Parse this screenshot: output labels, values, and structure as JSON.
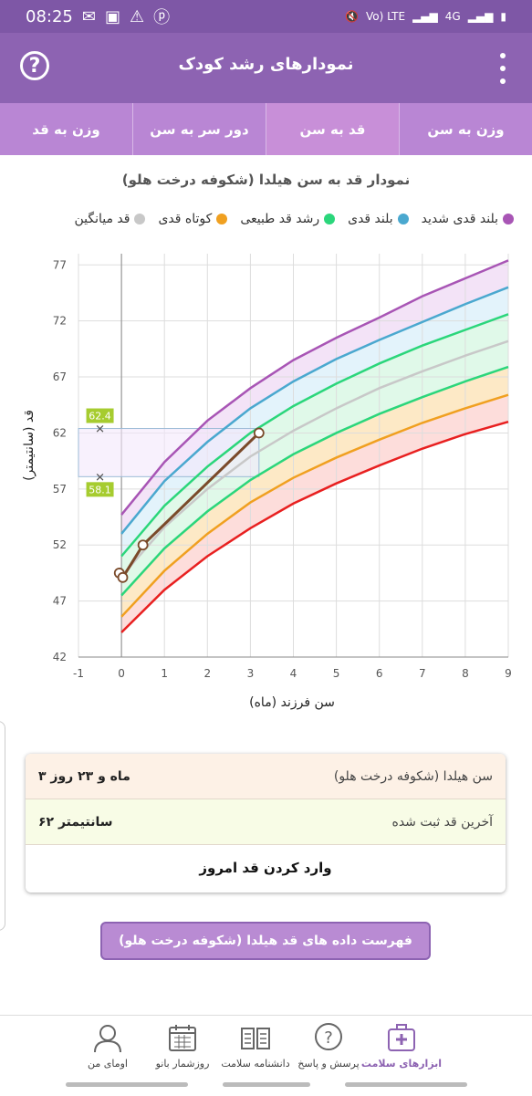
{
  "status_bar": {
    "time": "08:25",
    "network_label": "Vo) LTE",
    "network_type": "4G"
  },
  "app_bar": {
    "title": "نمودارهای رشد کودک",
    "help_label": "?"
  },
  "tabs": [
    {
      "label": "وزن به سن",
      "active": false
    },
    {
      "label": "قد به سن",
      "active": true
    },
    {
      "label": "دور سر به سن",
      "active": false
    },
    {
      "label": "وزن به قد",
      "active": false
    }
  ],
  "chart": {
    "title": "نمودار قد به سن هیلدا (شکوفه درخت هلو)",
    "xlabel": "سن فرزند (ماه)",
    "ylabel": "قد (سانتیمتر)",
    "legend": [
      {
        "label": "بلند قدی شدید",
        "color": "#a855b5"
      },
      {
        "label": "بلند قدی",
        "color": "#4aa8cf"
      },
      {
        "label": "رشد قد طبیعی",
        "color": "#2bd67b"
      },
      {
        "label": "کوتاه قدی",
        "color": "#f0a020"
      },
      {
        "label": "قد میانگین",
        "color": "#c8c8c8"
      }
    ],
    "marker_high": "62.4",
    "marker_low": "58.1"
  },
  "chart_data": {
    "type": "line",
    "xlim": [
      -1,
      9
    ],
    "ylim": [
      42,
      78
    ],
    "x_ticks": [
      "-1",
      "0",
      "1",
      "2",
      "3",
      "4",
      "5",
      "6",
      "7",
      "8",
      "9"
    ],
    "y_ticks": [
      "42",
      "47",
      "52",
      "57",
      "62",
      "67",
      "72",
      "77"
    ],
    "reference_x": [
      0,
      1,
      2,
      3,
      4,
      5,
      6,
      7,
      8,
      9
    ],
    "reference_curves": [
      {
        "color": "#e82020",
        "values": [
          44.2,
          48.0,
          51.0,
          53.5,
          55.7,
          57.5,
          59.1,
          60.6,
          61.9,
          63.0
        ]
      },
      {
        "color": "#f0a020",
        "values": [
          45.6,
          49.7,
          53.0,
          55.8,
          58.0,
          59.8,
          61.4,
          62.9,
          64.2,
          65.4
        ]
      },
      {
        "color": "#2bd67b",
        "values": [
          47.5,
          51.7,
          55.0,
          57.8,
          60.1,
          62.0,
          63.7,
          65.2,
          66.6,
          67.9
        ]
      },
      {
        "color": "#c8c8c8",
        "values": [
          49.2,
          53.6,
          57.0,
          59.9,
          62.2,
          64.2,
          66.0,
          67.5,
          68.9,
          70.2
        ]
      },
      {
        "color": "#2bd67b",
        "values": [
          51.0,
          55.5,
          59.0,
          62.0,
          64.4,
          66.4,
          68.2,
          69.8,
          71.2,
          72.6
        ]
      },
      {
        "color": "#4aa8cf",
        "values": [
          53.0,
          57.7,
          61.2,
          64.2,
          66.6,
          68.6,
          70.3,
          71.9,
          73.5,
          75.0
        ]
      },
      {
        "color": "#a855b5",
        "values": [
          54.7,
          59.4,
          63.1,
          66.0,
          68.5,
          70.5,
          72.3,
          74.2,
          75.8,
          77.4
        ]
      }
    ],
    "child_series": {
      "name": "هیلدا",
      "x": [
        -0.05,
        0.03,
        0.5,
        3.2
      ],
      "values": [
        49.5,
        49.1,
        52.0,
        62.0
      ],
      "color": "#7a4a2a"
    },
    "highlight_range": {
      "x_min": -1,
      "x_max": 3.2,
      "y_min": 58.1,
      "y_max": 62.4
    }
  },
  "summary": {
    "age_label": "سن هیلدا (شکوفه درخت هلو)",
    "age_value": "۳ ماه و ۲۳ روز",
    "height_label": "آخرین قد ثبت شده",
    "height_value": "۶۲ سانتیمتر",
    "enter_height_button": "وارد کردن قد امروز"
  },
  "list_button": "فهرست داده های قد هیلدا (شکوفه درخت هلو)",
  "bottom_nav": [
    {
      "label": "ابزارهای سلامت",
      "icon": "medical-kit-icon",
      "active": true
    },
    {
      "label": "پرسش و پاسخ",
      "icon": "question-bubble-icon",
      "active": false
    },
    {
      "label": "دانشنامه سلامت",
      "icon": "book-icon",
      "active": false
    },
    {
      "label": "روزشمار بانو",
      "icon": "calendar-icon",
      "active": false
    },
    {
      "label": "اومای من",
      "icon": "user-profile-icon",
      "active": false
    }
  ]
}
